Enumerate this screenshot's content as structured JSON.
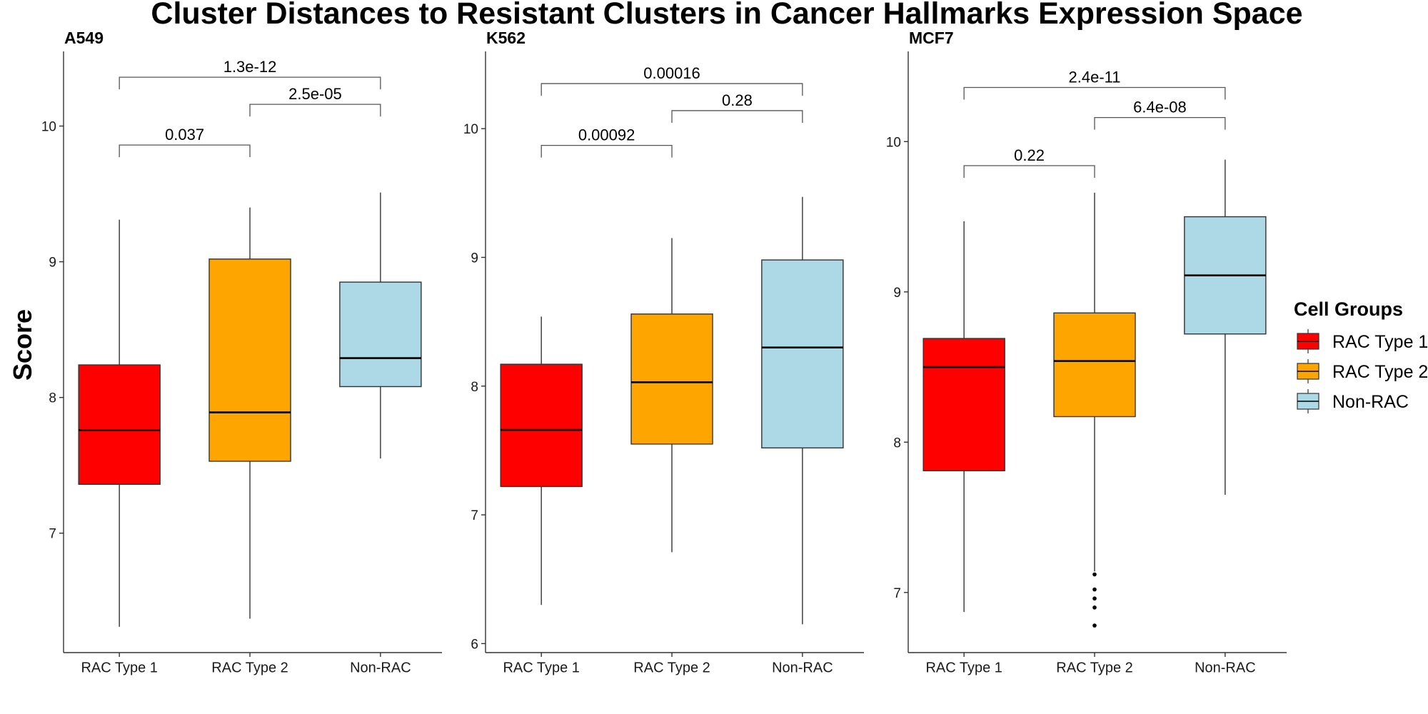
{
  "chart_data": {
    "type": "boxplot",
    "title": "Cluster Distances to Resistant Clusters in Cancer Hallmarks Expression Space",
    "ylabel": "Score",
    "xlabel": "",
    "categories": [
      "RAC Type 1",
      "RAC Type 2",
      "Non-RAC"
    ],
    "colors": {
      "RAC Type 1": "#ff0000",
      "RAC Type 2": "#ffa500",
      "Non-RAC": "#add8e6"
    },
    "legend": {
      "title": "Cell Groups",
      "entries": [
        "RAC Type 1",
        "RAC Type 2",
        "Non-RAC"
      ],
      "position": "right"
    },
    "grid": false,
    "panels": [
      {
        "name": "A549",
        "ylim": [
          6.12,
          10.55
        ],
        "yticks": [
          7,
          8,
          9,
          10
        ],
        "boxes": [
          {
            "group": "RAC Type 1",
            "whisker_low": 6.31,
            "q1": 7.36,
            "median": 7.76,
            "q3": 8.24,
            "whisker_high": 9.31,
            "outliers": []
          },
          {
            "group": "RAC Type 2",
            "whisker_low": 6.37,
            "q1": 7.53,
            "median": 7.89,
            "q3": 9.02,
            "whisker_high": 9.4,
            "outliers": []
          },
          {
            "group": "Non-RAC",
            "whisker_low": 7.55,
            "q1": 8.08,
            "median": 8.29,
            "q3": 8.85,
            "whisker_high": 9.51,
            "outliers": []
          }
        ],
        "comparisons": [
          {
            "from": 0,
            "to": 1,
            "label": "0.037",
            "y": 9.86
          },
          {
            "from": 1,
            "to": 2,
            "label": "2.5e-05",
            "y": 10.16
          },
          {
            "from": 0,
            "to": 2,
            "label": "1.3e-12",
            "y": 10.36
          }
        ]
      },
      {
        "name": "K562",
        "ylim": [
          5.93,
          10.6
        ],
        "yticks": [
          6,
          7,
          8,
          9,
          10
        ],
        "boxes": [
          {
            "group": "RAC Type 1",
            "whisker_low": 6.3,
            "q1": 7.22,
            "median": 7.66,
            "q3": 8.17,
            "whisker_high": 8.54,
            "outliers": []
          },
          {
            "group": "RAC Type 2",
            "whisker_low": 6.71,
            "q1": 7.55,
            "median": 8.03,
            "q3": 8.56,
            "whisker_high": 9.15,
            "outliers": []
          },
          {
            "group": "Non-RAC",
            "whisker_low": 6.15,
            "q1": 7.52,
            "median": 8.3,
            "q3": 8.98,
            "whisker_high": 9.47,
            "outliers": []
          }
        ],
        "comparisons": [
          {
            "from": 0,
            "to": 1,
            "label": "0.00092",
            "y": 9.87
          },
          {
            "from": 1,
            "to": 2,
            "label": "0.28",
            "y": 10.14
          },
          {
            "from": 0,
            "to": 2,
            "label": "0.00016",
            "y": 10.35
          }
        ]
      },
      {
        "name": "MCF7",
        "ylim": [
          6.6,
          10.6
        ],
        "yticks": [
          7,
          8,
          9,
          10
        ],
        "boxes": [
          {
            "group": "RAC Type 1",
            "whisker_low": 6.87,
            "q1": 7.81,
            "median": 8.5,
            "q3": 8.69,
            "whisker_high": 9.47,
            "outliers": []
          },
          {
            "group": "RAC Type 2",
            "whisker_low": 7.14,
            "q1": 8.17,
            "median": 8.54,
            "q3": 8.86,
            "whisker_high": 9.66,
            "outliers": [
              7.12,
              7.02,
              6.96,
              6.9,
              6.78
            ]
          },
          {
            "group": "Non-RAC",
            "whisker_low": 7.65,
            "q1": 8.72,
            "median": 9.11,
            "q3": 9.5,
            "whisker_high": 9.88,
            "outliers": []
          }
        ],
        "comparisons": [
          {
            "from": 0,
            "to": 1,
            "label": "0.22",
            "y": 9.84
          },
          {
            "from": 1,
            "to": 2,
            "label": "6.4e-08",
            "y": 10.16
          },
          {
            "from": 0,
            "to": 2,
            "label": "2.4e-11",
            "y": 10.36
          }
        ]
      }
    ]
  }
}
